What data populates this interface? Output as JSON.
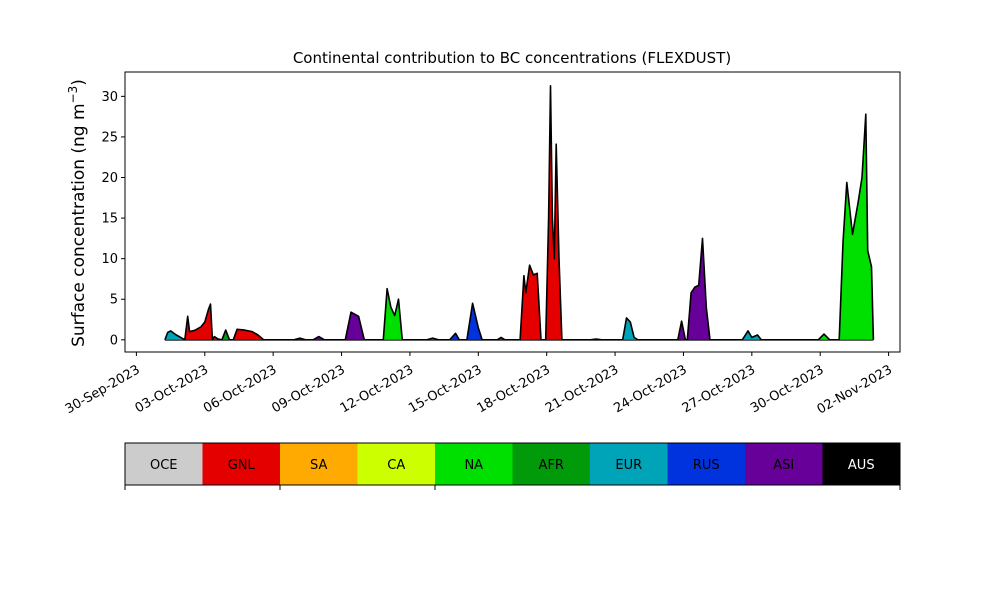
{
  "chart_data": {
    "type": "area",
    "title": "Continental contribution to BC concentrations (FLEXDUST)",
    "ylabel": "Surface concentration (ng m",
    "ylabel_sup": "−3",
    "ylabel_close": ")",
    "xlabel": "",
    "ylim": [
      -1.5,
      33
    ],
    "xlim_dates": [
      "2023-09-29T12:00",
      "2023-11-02T12:00"
    ],
    "yticks": [
      0,
      5,
      10,
      15,
      20,
      25,
      30
    ],
    "xticks": [
      {
        "date": "2023-09-30",
        "label": "30-Sep-2023"
      },
      {
        "date": "2023-10-03",
        "label": "03-Oct-2023"
      },
      {
        "date": "2023-10-06",
        "label": "06-Oct-2023"
      },
      {
        "date": "2023-10-09",
        "label": "09-Oct-2023"
      },
      {
        "date": "2023-10-12",
        "label": "12-Oct-2023"
      },
      {
        "date": "2023-10-15",
        "label": "15-Oct-2023"
      },
      {
        "date": "2023-10-18",
        "label": "18-Oct-2023"
      },
      {
        "date": "2023-10-21",
        "label": "21-Oct-2023"
      },
      {
        "date": "2023-10-24",
        "label": "24-Oct-2023"
      },
      {
        "date": "2023-10-27",
        "label": "27-Oct-2023"
      },
      {
        "date": "2023-10-30",
        "label": "30-Oct-2023"
      },
      {
        "date": "2023-11-02",
        "label": "02-Nov-2023"
      }
    ],
    "grid": false,
    "legend_placement": "colorbar-below",
    "regions": [
      {
        "code": "OCE",
        "color": "#cccccc"
      },
      {
        "code": "GNL",
        "color": "#e50000"
      },
      {
        "code": "SA",
        "color": "#ffaa00"
      },
      {
        "code": "CA",
        "color": "#ccff00"
      },
      {
        "code": "NA",
        "color": "#00e000"
      },
      {
        "code": "AFR",
        "color": "#009a0a"
      },
      {
        "code": "EUR",
        "color": "#00a4b8"
      },
      {
        "code": "RUS",
        "color": "#0033dd"
      },
      {
        "code": "ASI",
        "color": "#660099"
      },
      {
        "code": "AUS",
        "color": "#000000"
      }
    ],
    "episodes": [
      {
        "dominant": "EUR",
        "points": [
          [
            "2023-10-01T06:00",
            0
          ],
          [
            "2023-10-01T09:00",
            0.9
          ],
          [
            "2023-10-01T12:00",
            1.1
          ],
          [
            "2023-10-01T18:00",
            0.6
          ],
          [
            "2023-10-02T00:00",
            0.2
          ],
          [
            "2023-10-02T03:00",
            0
          ]
        ]
      },
      {
        "dominant": "GNL",
        "points": [
          [
            "2023-10-02T03:00",
            0
          ],
          [
            "2023-10-02T06:00",
            2.9
          ],
          [
            "2023-10-02T08:00",
            1.0
          ],
          [
            "2023-10-02T14:00",
            1.2
          ],
          [
            "2023-10-02T20:00",
            1.6
          ],
          [
            "2023-10-03T00:00",
            2.2
          ],
          [
            "2023-10-03T04:00",
            3.8
          ],
          [
            "2023-10-03T06:00",
            4.4
          ],
          [
            "2023-10-03T08:00",
            0
          ]
        ]
      },
      {
        "dominant": "GNL",
        "points": [
          [
            "2023-10-03T08:00",
            0
          ],
          [
            "2023-10-03T10:00",
            0.4
          ],
          [
            "2023-10-03T14:00",
            0.1
          ],
          [
            "2023-10-03T18:00",
            0
          ]
        ]
      },
      {
        "dominant": "AFR",
        "points": [
          [
            "2023-10-03T18:00",
            0
          ],
          [
            "2023-10-03T22:00",
            1.2
          ],
          [
            "2023-10-04T02:00",
            0
          ]
        ]
      },
      {
        "dominant": "GNL",
        "points": [
          [
            "2023-10-04T06:00",
            0
          ],
          [
            "2023-10-04T10:00",
            1.3
          ],
          [
            "2023-10-04T18:00",
            1.2
          ],
          [
            "2023-10-05T02:00",
            1.0
          ],
          [
            "2023-10-05T08:00",
            0.6
          ],
          [
            "2023-10-05T14:00",
            0
          ]
        ]
      },
      {
        "dominant": "ASI",
        "points": [
          [
            "2023-10-06T22:00",
            0
          ],
          [
            "2023-10-07T04:00",
            0.2
          ],
          [
            "2023-10-07T10:00",
            0
          ]
        ]
      },
      {
        "dominant": "ASI",
        "points": [
          [
            "2023-10-07T18:00",
            0
          ],
          [
            "2023-10-08T00:00",
            0.4
          ],
          [
            "2023-10-08T06:00",
            0
          ]
        ]
      },
      {
        "dominant": "ASI",
        "points": [
          [
            "2023-10-09T04:00",
            0
          ],
          [
            "2023-10-09T10:00",
            3.4
          ],
          [
            "2023-10-09T18:00",
            2.9
          ],
          [
            "2023-10-10T00:00",
            0
          ]
        ]
      },
      {
        "dominant": "NA",
        "points": [
          [
            "2023-10-10T20:00",
            0
          ],
          [
            "2023-10-11T00:00",
            6.3
          ],
          [
            "2023-10-11T04:00",
            4.0
          ],
          [
            "2023-10-11T08:00",
            3.0
          ],
          [
            "2023-10-11T12:00",
            5.0
          ],
          [
            "2023-10-11T16:00",
            0
          ]
        ]
      },
      {
        "dominant": "EUR",
        "points": [
          [
            "2023-10-12T18:00",
            0
          ],
          [
            "2023-10-13T00:00",
            0.2
          ],
          [
            "2023-10-13T06:00",
            0
          ]
        ]
      },
      {
        "dominant": "RUS",
        "points": [
          [
            "2023-10-13T18:00",
            0
          ],
          [
            "2023-10-14T00:00",
            0.8
          ],
          [
            "2023-10-14T04:00",
            0
          ]
        ]
      },
      {
        "dominant": "RUS",
        "points": [
          [
            "2023-10-14T12:00",
            0
          ],
          [
            "2023-10-14T18:00",
            4.5
          ],
          [
            "2023-10-15T00:00",
            1.5
          ],
          [
            "2023-10-15T04:00",
            0
          ]
        ]
      },
      {
        "dominant": "GNL",
        "points": [
          [
            "2023-10-15T20:00",
            0
          ],
          [
            "2023-10-16T00:00",
            0.3
          ],
          [
            "2023-10-16T04:00",
            0
          ]
        ]
      },
      {
        "dominant": "GNL",
        "points": [
          [
            "2023-10-16T20:00",
            0
          ],
          [
            "2023-10-17T00:00",
            7.9
          ],
          [
            "2023-10-17T02:00",
            5.8
          ],
          [
            "2023-10-17T06:00",
            9.2
          ],
          [
            "2023-10-17T10:00",
            8.0
          ],
          [
            "2023-10-17T14:00",
            8.2
          ],
          [
            "2023-10-17T18:00",
            0
          ]
        ]
      },
      {
        "dominant": "GNL",
        "points": [
          [
            "2023-10-17T23:00",
            0
          ],
          [
            "2023-10-18T02:00",
            15.0
          ],
          [
            "2023-10-18T04:00",
            31.3
          ],
          [
            "2023-10-18T06:00",
            15.0
          ],
          [
            "2023-10-18T08:00",
            10.0
          ],
          [
            "2023-10-18T10:00",
            24.1
          ],
          [
            "2023-10-18T13:00",
            10.0
          ],
          [
            "2023-10-18T16:00",
            0
          ]
        ]
      },
      {
        "dominant": "RUS",
        "points": [
          [
            "2023-10-19T22:00",
            0
          ],
          [
            "2023-10-20T04:00",
            0.1
          ],
          [
            "2023-10-20T10:00",
            0
          ]
        ]
      },
      {
        "dominant": "EUR",
        "points": [
          [
            "2023-10-21T08:00",
            0
          ],
          [
            "2023-10-21T12:00",
            2.7
          ],
          [
            "2023-10-21T16:00",
            2.2
          ],
          [
            "2023-10-21T20:00",
            0.3
          ],
          [
            "2023-10-22T00:00",
            0
          ]
        ]
      },
      {
        "dominant": "ASI",
        "points": [
          [
            "2023-10-23T18:00",
            0
          ],
          [
            "2023-10-23T22:00",
            2.3
          ],
          [
            "2023-10-24T02:00",
            0
          ]
        ]
      },
      {
        "dominant": "ASI",
        "points": [
          [
            "2023-10-24T04:00",
            0
          ],
          [
            "2023-10-24T08:00",
            5.8
          ],
          [
            "2023-10-24T12:00",
            6.5
          ],
          [
            "2023-10-24T16:00",
            6.7
          ],
          [
            "2023-10-24T20:00",
            12.5
          ],
          [
            "2023-10-25T00:00",
            4.0
          ],
          [
            "2023-10-25T04:00",
            0
          ]
        ]
      },
      {
        "dominant": "EUR",
        "points": [
          [
            "2023-10-26T14:00",
            0
          ],
          [
            "2023-10-26T20:00",
            1.1
          ],
          [
            "2023-10-27T00:00",
            0.3
          ],
          [
            "2023-10-27T06:00",
            0.6
          ],
          [
            "2023-10-27T10:00",
            0
          ]
        ]
      },
      {
        "dominant": "NA",
        "points": [
          [
            "2023-10-29T22:00",
            0
          ],
          [
            "2023-10-30T04:00",
            0.7
          ],
          [
            "2023-10-30T10:00",
            0
          ]
        ]
      },
      {
        "dominant": "NA",
        "points": [
          [
            "2023-10-30T20:00",
            0
          ],
          [
            "2023-10-31T00:00",
            12.0
          ],
          [
            "2023-10-31T04:00",
            19.4
          ],
          [
            "2023-10-31T10:00",
            13.0
          ],
          [
            "2023-10-31T16:00",
            17.0
          ],
          [
            "2023-10-31T20:00",
            20.0
          ],
          [
            "2023-11-01T00:00",
            27.8
          ],
          [
            "2023-11-01T02:00",
            11.0
          ],
          [
            "2023-11-01T06:00",
            9.0
          ],
          [
            "2023-11-01T08:00",
            0
          ]
        ]
      }
    ]
  }
}
